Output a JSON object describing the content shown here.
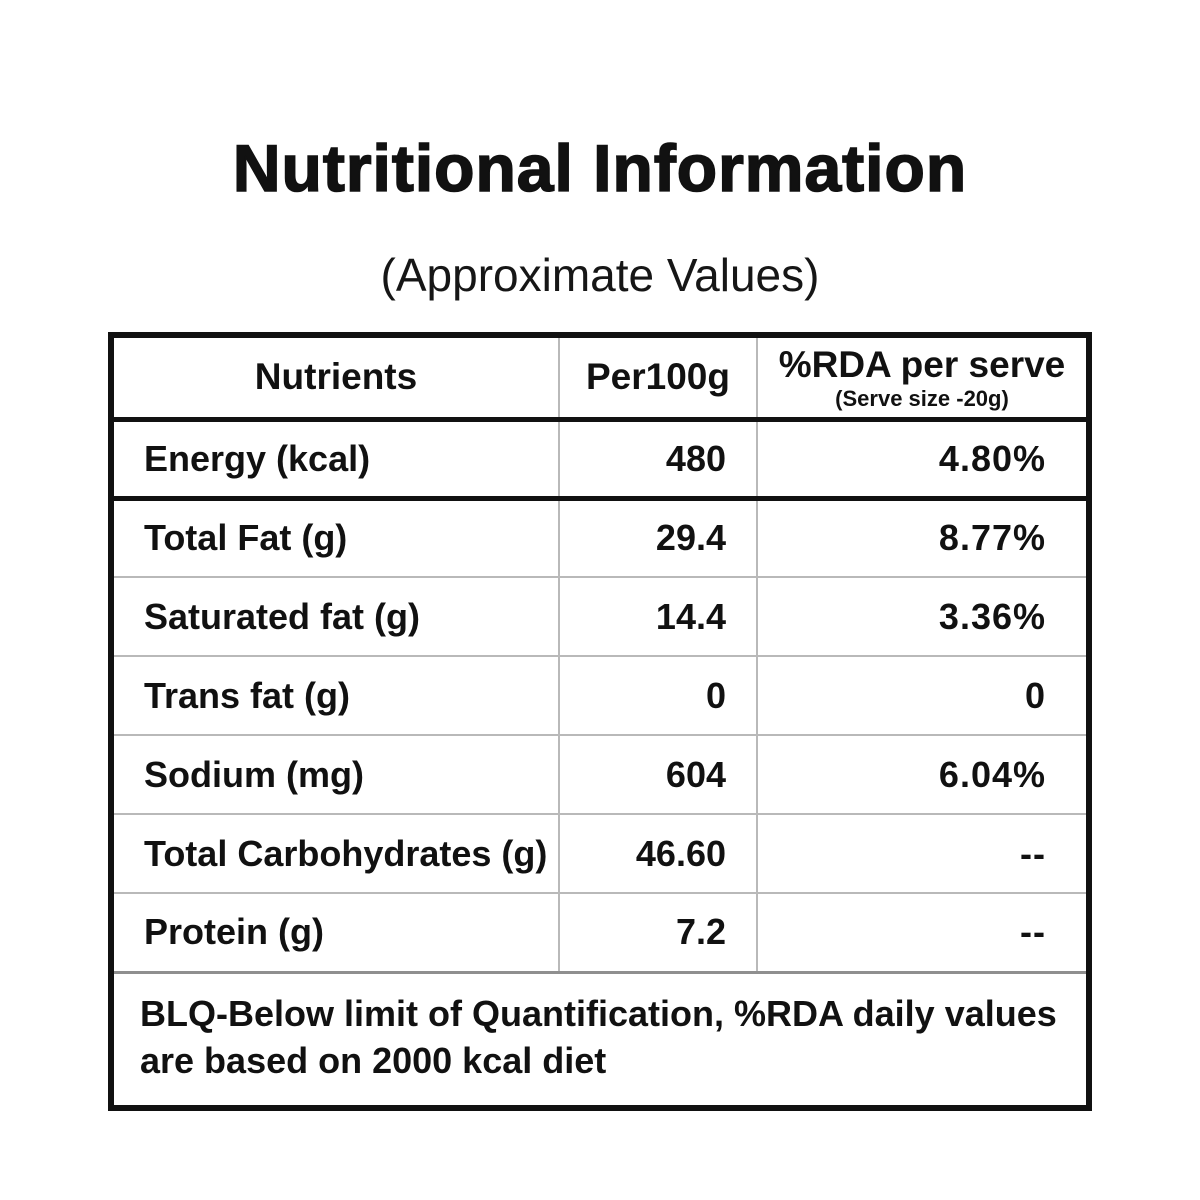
{
  "title": "Nutritional Information",
  "subtitle": "(Approximate Values)",
  "table": {
    "columns": [
      {
        "label": "Nutrients"
      },
      {
        "label": "Per100g"
      },
      {
        "label": "%RDA per serve",
        "sublabel": "(Serve size -20g)"
      }
    ],
    "rows": [
      {
        "nutrient": "Energy (kcal)",
        "per100g": "480",
        "rda_per_serve": "4.80%"
      },
      {
        "nutrient": "Total Fat (g)",
        "per100g": "29.4",
        "rda_per_serve": "8.77%"
      },
      {
        "nutrient": "Saturated fat (g)",
        "per100g": "14.4",
        "rda_per_serve": "3.36%"
      },
      {
        "nutrient": "Trans fat (g)",
        "per100g": "0",
        "rda_per_serve": "0"
      },
      {
        "nutrient": "Sodium (mg)",
        "per100g": "604",
        "rda_per_serve": "6.04%"
      },
      {
        "nutrient": "Total Carbohydrates (g)",
        "per100g": "46.60",
        "rda_per_serve": "--"
      },
      {
        "nutrient": "Protein (g)",
        "per100g": "7.2",
        "rda_per_serve": "--"
      }
    ],
    "footnote": "BLQ-Below limit of Quantification, %RDA daily values are based on 2000 kcal diet"
  },
  "colors": {
    "background": "#ffffff",
    "text": "#111111",
    "border_heavy": "#111111",
    "border_light": "#b9b9b9"
  }
}
